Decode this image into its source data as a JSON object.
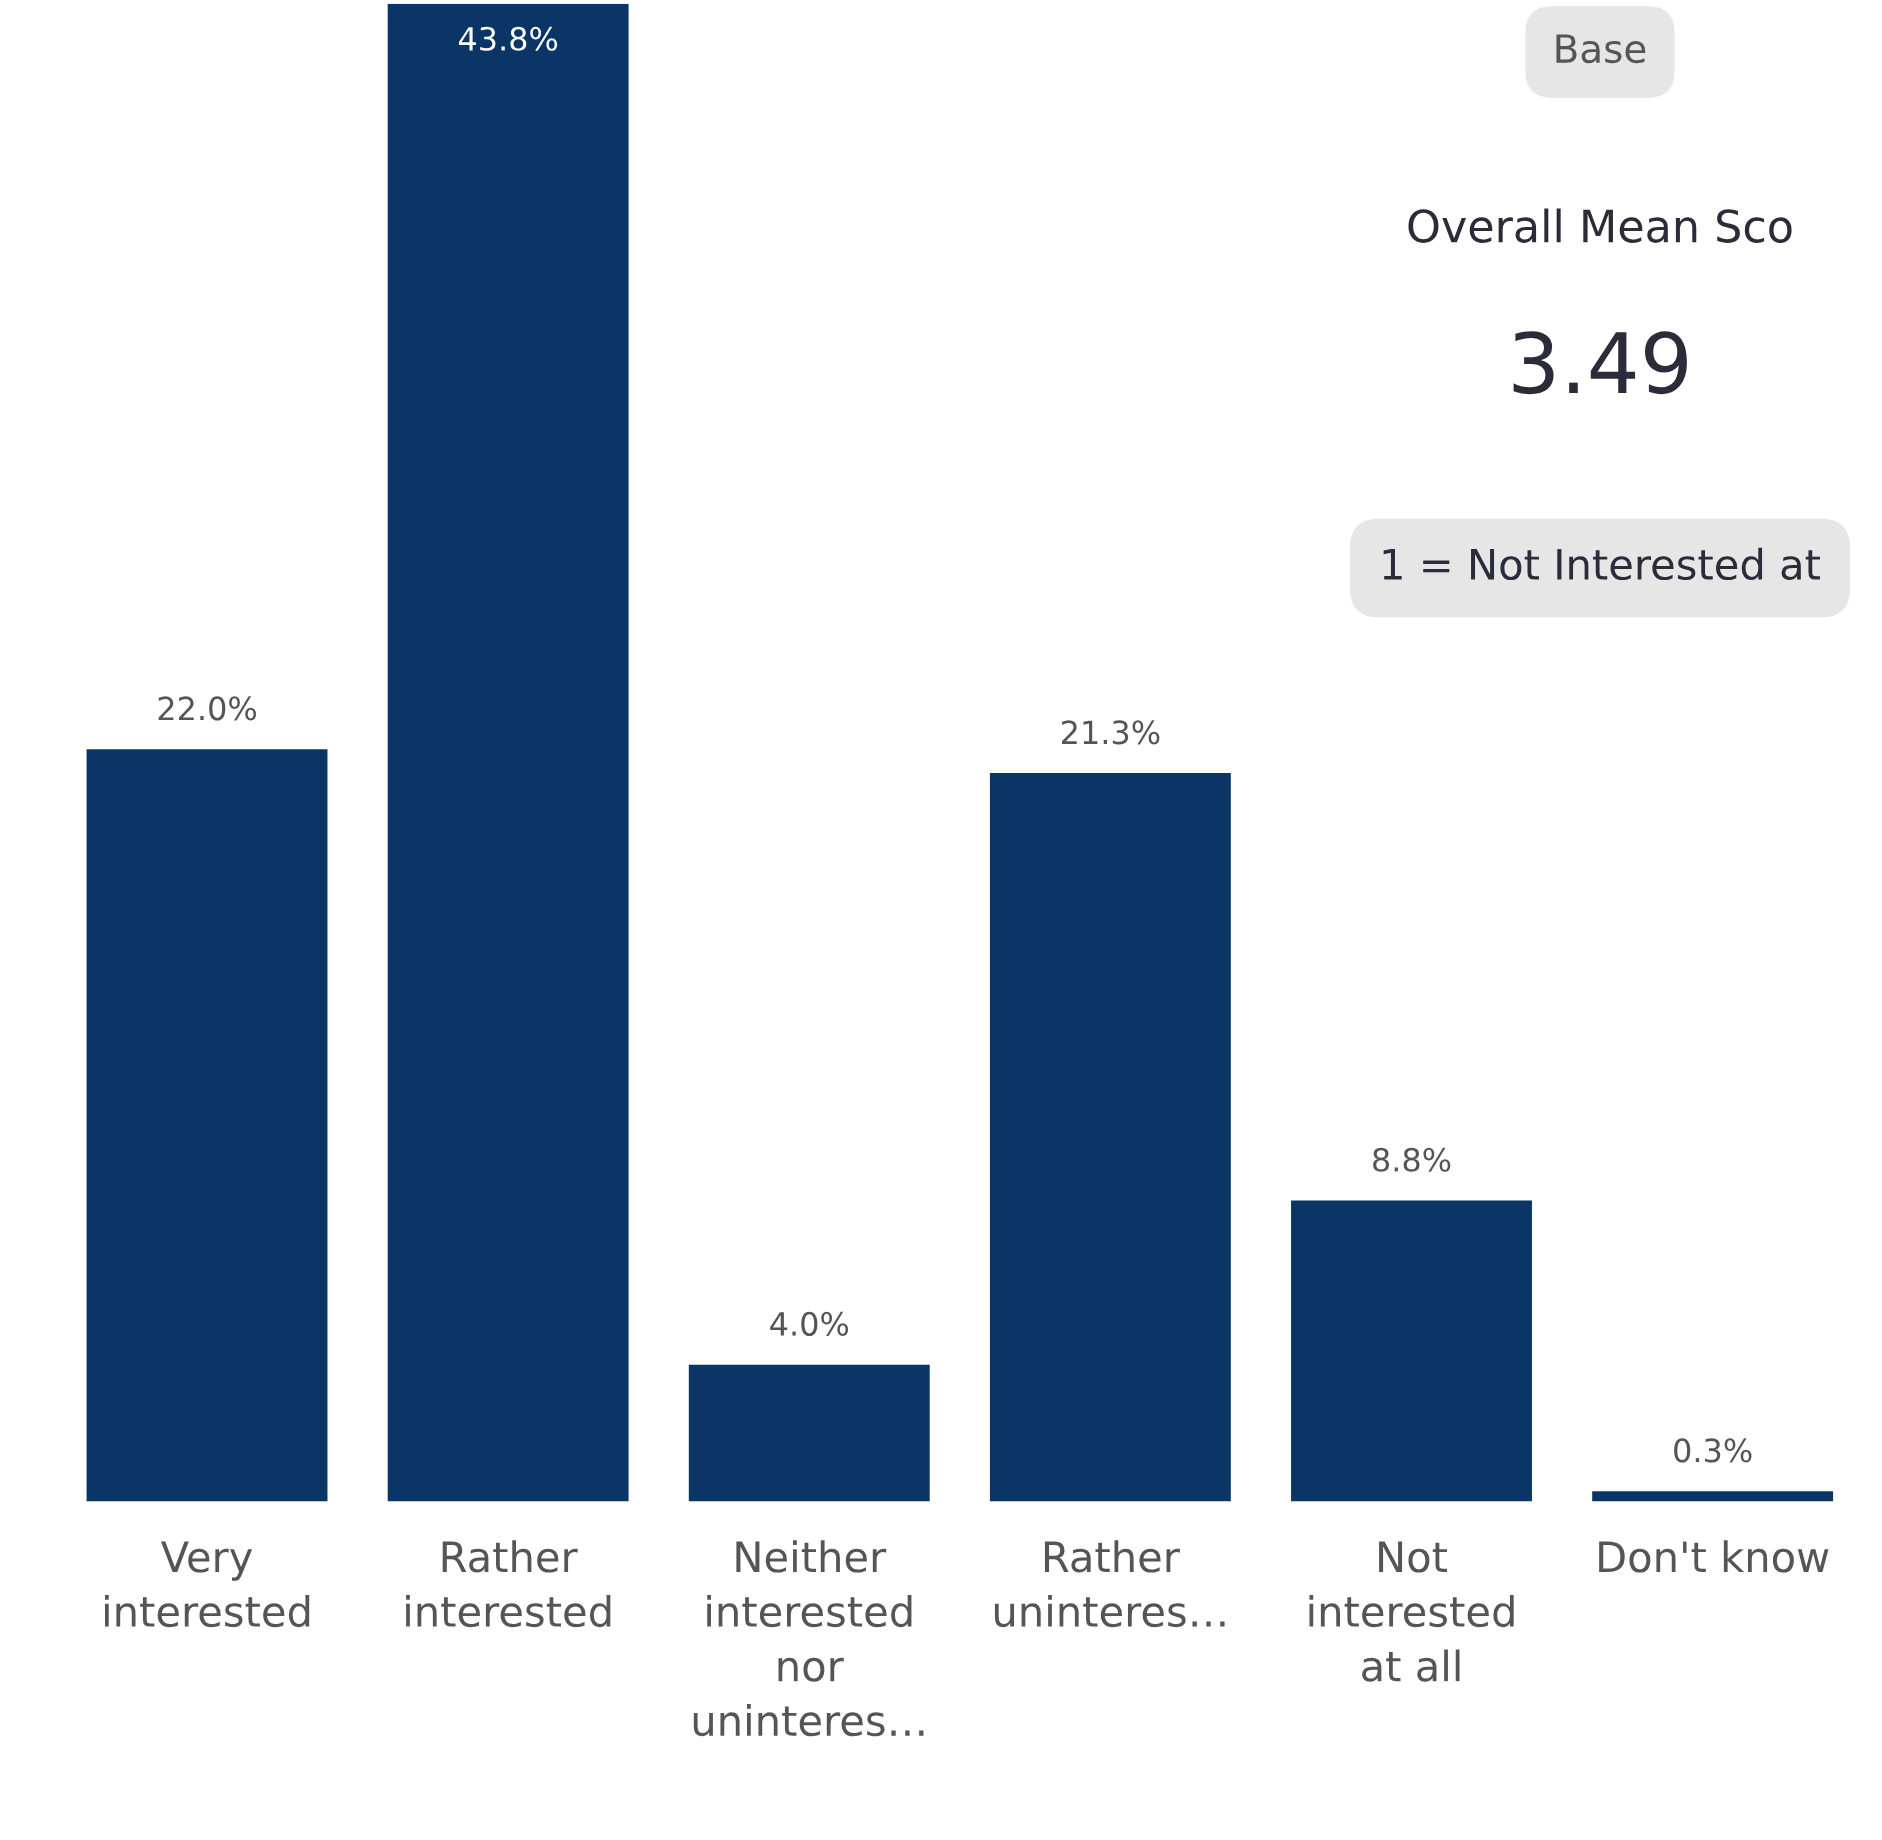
{
  "chart_data": {
    "type": "bar",
    "categories": [
      "Very interested",
      "Rather interested",
      "Neither interested nor uninteres…",
      "Rather uninteres…",
      "Not interested at all",
      "Don't know"
    ],
    "values": [
      22.0,
      43.8,
      4.0,
      21.3,
      8.8,
      0.3
    ],
    "value_labels": [
      "22.0%",
      "43.8%",
      "4.0%",
      "21.3%",
      "8.8%",
      "0.3%"
    ],
    "color": "#0b3566",
    "grid": false,
    "legend": false,
    "annotations": [
      "Base",
      "Overall Mean Sco",
      "3.49",
      "1 = Not Interested at"
    ]
  }
}
